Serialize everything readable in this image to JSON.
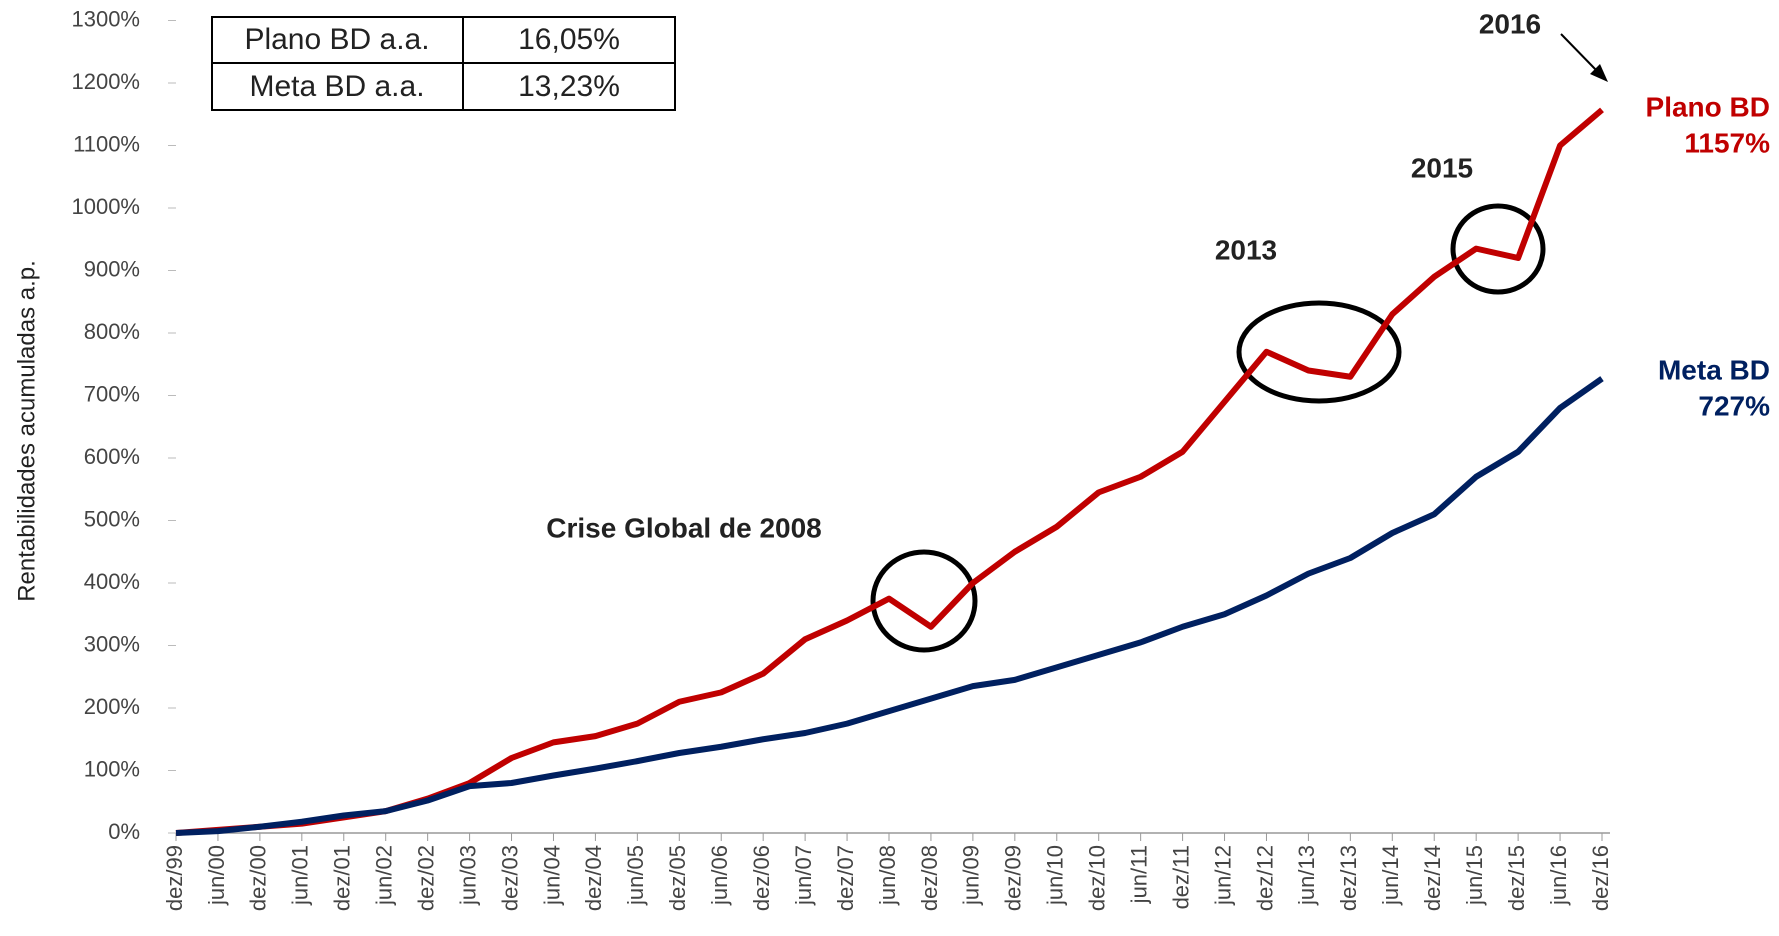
{
  "chart_data": {
    "type": "line",
    "y_label": "Rentabilidades acumuladas a.p.",
    "categories": [
      "dez/99",
      "jun/00",
      "dez/00",
      "jun/01",
      "dez/01",
      "jun/02",
      "dez/02",
      "jun/03",
      "dez/03",
      "jun/04",
      "dez/04",
      "jun/05",
      "dez/05",
      "jun/06",
      "dez/06",
      "jun/07",
      "dez/07",
      "jun/08",
      "dez/08",
      "jun/09",
      "dez/09",
      "jun/10",
      "dez/10",
      "jun/11",
      "dez/11",
      "jun/12",
      "dez/12",
      "jun/13",
      "dez/13",
      "jun/14",
      "dez/14",
      "jun/15",
      "dez/15",
      "jun/16",
      "dez/16"
    ],
    "series": [
      {
        "name": "Plano BD",
        "color": "#c00000",
        "end_label": "1157%",
        "values": [
          0,
          5,
          10,
          15,
          25,
          35,
          55,
          80,
          120,
          145,
          155,
          175,
          210,
          225,
          255,
          310,
          340,
          375,
          330,
          400,
          450,
          490,
          545,
          570,
          610,
          690,
          770,
          740,
          730,
          830,
          890,
          935,
          920,
          1100,
          1157
        ]
      },
      {
        "name": "Meta BD",
        "color": "#002060",
        "end_label": "727%",
        "values": [
          0,
          3,
          10,
          18,
          28,
          35,
          52,
          75,
          80,
          92,
          103,
          115,
          128,
          138,
          150,
          160,
          175,
          195,
          215,
          235,
          245,
          265,
          285,
          305,
          330,
          350,
          380,
          415,
          440,
          480,
          510,
          570,
          610,
          680,
          727
        ]
      }
    ],
    "ylim": [
      0,
      1300
    ],
    "yticks": [
      {
        "value": 0,
        "label": "0%"
      },
      {
        "value": 100,
        "label": "100%"
      },
      {
        "value": 200,
        "label": "200%"
      },
      {
        "value": 300,
        "label": "300%"
      },
      {
        "value": 400,
        "label": "400%"
      },
      {
        "value": 500,
        "label": "500%"
      },
      {
        "value": 600,
        "label": "600%"
      },
      {
        "value": 700,
        "label": "700%"
      },
      {
        "value": 800,
        "label": "800%"
      },
      {
        "value": 900,
        "label": "900%"
      },
      {
        "value": 1000,
        "label": "1000%"
      },
      {
        "value": 1100,
        "label": "1100%"
      },
      {
        "value": 1200,
        "label": "1200%"
      },
      {
        "value": 1300,
        "label": "1300%"
      }
    ],
    "grid": false,
    "table": [
      [
        "Plano BD a.a.",
        "16,05%"
      ],
      [
        "Meta BD a.a.",
        "13,23%"
      ]
    ],
    "annotations": [
      "Crise Global de 2008",
      "2013",
      "2015",
      "2016"
    ]
  }
}
